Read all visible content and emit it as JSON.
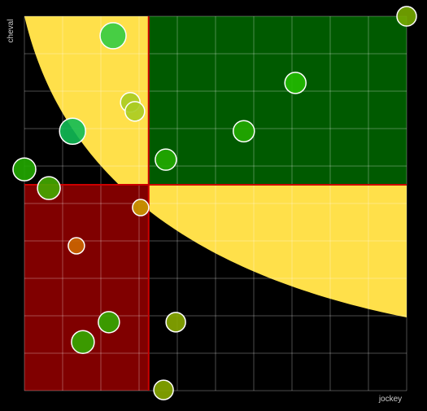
{
  "chart_data": {
    "type": "scatter",
    "x_label": "jockey",
    "y_label": "cheval",
    "xlim": [
      0,
      10
    ],
    "ylim": [
      0,
      10
    ],
    "xticks": [
      0,
      1,
      2,
      3,
      4,
      5,
      6,
      7,
      8,
      9,
      10
    ],
    "yticks": [
      0,
      1,
      2,
      3,
      4,
      5,
      6,
      7,
      8,
      9,
      10
    ],
    "grid": true,
    "quadrant_x": 3.25,
    "quadrant_y": 5.5,
    "x": [
      2.32,
      10,
      7.09,
      2.77,
      2.89,
      1.26,
      5.74,
      3.7,
      0,
      0.64,
      3.04,
      1.36,
      2.21,
      3.96,
      1.53,
      3.64
    ],
    "values": [
      9.48,
      10,
      8.22,
      7.7,
      7.46,
      6.93,
      6.93,
      6.17,
      5.91,
      5.41,
      4.89,
      3.87,
      1.83,
      1.83,
      1.3,
      0.02
    ],
    "sizes": [
      16,
      12,
      13,
      12,
      12,
      16,
      13,
      13,
      14,
      14,
      10,
      10,
      13,
      12,
      14,
      12
    ],
    "colors": [
      "#33cc44",
      "#77aa00",
      "#22bb00",
      "#aacc22",
      "#aacc22",
      "#11bb55",
      "#22aa00",
      "#22aa00",
      "#22aa00",
      "#44aa00",
      "#cc9900",
      "#cc6600",
      "#33aa00",
      "#88aa00",
      "#33aa00",
      "#88aa00"
    ]
  }
}
